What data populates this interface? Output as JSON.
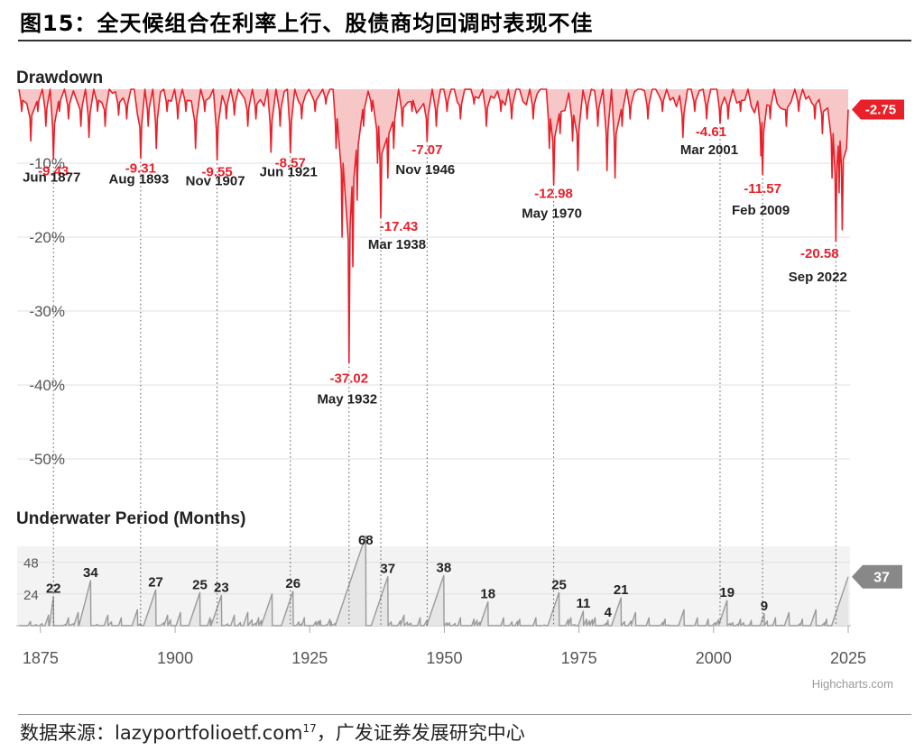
{
  "figure": {
    "title": "图15：全天候组合在利率上行、股债商均回调时表现不佳",
    "source_prefix": "数据来源：",
    "source_site": "lazyportfolioetf.com",
    "source_sup": "17",
    "source_suffix": "，广发证券发展研究中心",
    "credit": "Highcharts.com"
  },
  "colors": {
    "drawdown": "#e8202a",
    "drawdown_fill": "#f7c7c7",
    "underwater": "#9a9a9a",
    "underwater_fill": "#e6e6e6",
    "badge_red": "#e8202a",
    "badge_gray": "#888888"
  },
  "chart_data": [
    {
      "type": "area",
      "title": "Drawdown",
      "y_unit": "%",
      "ylim": [
        -55,
        0
      ],
      "yticks": [
        -10,
        -20,
        -30,
        -40,
        -50
      ],
      "ytick_labels": [
        "-10%",
        "-20%",
        "-30%",
        "-40%",
        "-50%"
      ],
      "xlim": [
        1871,
        2025
      ],
      "xticks": [
        1875,
        1900,
        1925,
        1950,
        1975,
        2000,
        2025
      ],
      "grid": true,
      "current_value": "-2.75",
      "annotations": [
        {
          "date": "Jun 1877",
          "x": 1877.4,
          "value": "-9.43"
        },
        {
          "date": "Aug 1893",
          "x": 1893.6,
          "value": "-9.31"
        },
        {
          "date": "Nov 1907",
          "x": 1907.8,
          "value": "-9.55"
        },
        {
          "date": "Jun 1921",
          "x": 1921.4,
          "value": "-8.57"
        },
        {
          "date": "May 1932",
          "x": 1932.3,
          "value": "-37.02"
        },
        {
          "date": "Mar 1938",
          "x": 1938.2,
          "value": "-17.43"
        },
        {
          "date": "Nov 1946",
          "x": 1946.8,
          "value": "-7.07"
        },
        {
          "date": "May 1970",
          "x": 1970.3,
          "value": "-12.98"
        },
        {
          "date": "Mar 2001",
          "x": 2001.2,
          "value": "-4.61"
        },
        {
          "date": "Feb 2009",
          "x": 2009.1,
          "value": "-11.57"
        },
        {
          "date": "Sep 2022",
          "x": 2022.7,
          "value": "-20.58"
        }
      ],
      "troughs": [
        [
          1871.5,
          -3
        ],
        [
          1873.2,
          -7
        ],
        [
          1874.5,
          -3
        ],
        [
          1876.0,
          -5
        ],
        [
          1877.4,
          -9.43
        ],
        [
          1878.5,
          -3
        ],
        [
          1880.2,
          -4
        ],
        [
          1882.5,
          -5
        ],
        [
          1884.0,
          -6.5
        ],
        [
          1885.6,
          -3
        ],
        [
          1887.0,
          -5
        ],
        [
          1889.5,
          -3.5
        ],
        [
          1891.0,
          -4
        ],
        [
          1893.6,
          -9.31
        ],
        [
          1895.0,
          -5
        ],
        [
          1896.5,
          -8
        ],
        [
          1898.5,
          -3
        ],
        [
          1900.5,
          -4
        ],
        [
          1902.0,
          -3
        ],
        [
          1903.8,
          -8
        ],
        [
          1905.5,
          -3
        ],
        [
          1907.8,
          -9.55
        ],
        [
          1909.5,
          -4
        ],
        [
          1911.0,
          -3.5
        ],
        [
          1913.5,
          -5
        ],
        [
          1915.0,
          -4
        ],
        [
          1917.8,
          -8.5
        ],
        [
          1919.5,
          -5
        ],
        [
          1921.4,
          -8.57
        ],
        [
          1923.5,
          -4
        ],
        [
          1926.0,
          -3
        ],
        [
          1928.0,
          -2
        ],
        [
          1929.9,
          -8
        ],
        [
          1931.0,
          -20
        ],
        [
          1932.3,
          -37.02
        ],
        [
          1933.0,
          -24
        ],
        [
          1933.8,
          -15
        ],
        [
          1935.0,
          -5
        ],
        [
          1936.5,
          -3
        ],
        [
          1937.6,
          -10
        ],
        [
          1938.2,
          -17.43
        ],
        [
          1939.5,
          -12
        ],
        [
          1940.6,
          -8
        ],
        [
          1942.2,
          -5
        ],
        [
          1944.0,
          -3
        ],
        [
          1946.8,
          -7.07
        ],
        [
          1948.5,
          -5
        ],
        [
          1950.5,
          -3
        ],
        [
          1953.0,
          -4
        ],
        [
          1955.5,
          -2
        ],
        [
          1957.8,
          -5
        ],
        [
          1960.5,
          -3
        ],
        [
          1962.5,
          -4
        ],
        [
          1966.5,
          -4
        ],
        [
          1969.5,
          -8
        ],
        [
          1970.3,
          -12.98
        ],
        [
          1971.5,
          -6
        ],
        [
          1973.8,
          -7
        ],
        [
          1974.8,
          -11
        ],
        [
          1976.5,
          -4
        ],
        [
          1978.5,
          -5
        ],
        [
          1980.2,
          -11
        ],
        [
          1981.7,
          -12
        ],
        [
          1983.0,
          -5
        ],
        [
          1984.5,
          -4
        ],
        [
          1987.8,
          -4
        ],
        [
          1990.5,
          -3
        ],
        [
          1994.3,
          -6.5
        ],
        [
          1996.5,
          -3
        ],
        [
          1998.7,
          -4
        ],
        [
          2001.2,
          -4.61
        ],
        [
          2002.7,
          -4
        ],
        [
          2005.0,
          -3
        ],
        [
          2008.8,
          -9
        ],
        [
          2009.1,
          -11.57
        ],
        [
          2010.5,
          -4
        ],
        [
          2013.5,
          -5
        ],
        [
          2015.8,
          -3
        ],
        [
          2018.8,
          -4
        ],
        [
          2020.2,
          -6
        ],
        [
          2022.0,
          -12
        ],
        [
          2022.7,
          -20.58
        ],
        [
          2023.3,
          -14
        ],
        [
          2023.9,
          -19
        ]
      ],
      "end_value": -2.75
    },
    {
      "type": "area",
      "title": "Underwater Period (Months)",
      "ylim": [
        0,
        60
      ],
      "yticks": [
        24,
        48
      ],
      "xlim": [
        1871,
        2025
      ],
      "xticks": [
        1875,
        1900,
        1925,
        1950,
        1975,
        2000,
        2025
      ],
      "current_value": "37",
      "annotations": [
        {
          "x": 1877.4,
          "value": "22"
        },
        {
          "x": 1884.3,
          "value": "34"
        },
        {
          "x": 1896.4,
          "value": "27"
        },
        {
          "x": 1904.6,
          "value": "25"
        },
        {
          "x": 1908.6,
          "value": "23"
        },
        {
          "x": 1921.9,
          "value": "26"
        },
        {
          "x": 1935.4,
          "value": "68"
        },
        {
          "x": 1939.5,
          "value": "37"
        },
        {
          "x": 1949.9,
          "value": "38"
        },
        {
          "x": 1958.1,
          "value": "18"
        },
        {
          "x": 1971.3,
          "value": "25"
        },
        {
          "x": 1975.8,
          "value": "11"
        },
        {
          "x": 1980.4,
          "value": "4"
        },
        {
          "x": 1982.8,
          "value": "21"
        },
        {
          "x": 2002.5,
          "value": "19"
        },
        {
          "x": 2009.4,
          "value": "9"
        }
      ],
      "peaks": [
        [
          1876.5,
          8
        ],
        [
          1877.4,
          22
        ],
        [
          1880.2,
          6
        ],
        [
          1882.0,
          10
        ],
        [
          1884.3,
          34
        ],
        [
          1887.5,
          8
        ],
        [
          1890.0,
          6
        ],
        [
          1893.0,
          12
        ],
        [
          1896.4,
          27
        ],
        [
          1898.6,
          8
        ],
        [
          1901.0,
          10
        ],
        [
          1904.6,
          25
        ],
        [
          1906.5,
          6
        ],
        [
          1908.6,
          23
        ],
        [
          1911.0,
          8
        ],
        [
          1913.5,
          10
        ],
        [
          1915.5,
          6
        ],
        [
          1918.0,
          24
        ],
        [
          1921.9,
          26
        ],
        [
          1924.0,
          6
        ],
        [
          1927.0,
          4
        ],
        [
          1929.0,
          3
        ],
        [
          1935.4,
          68
        ],
        [
          1939.5,
          37
        ],
        [
          1942.5,
          8
        ],
        [
          1945.5,
          6
        ],
        [
          1949.9,
          38
        ],
        [
          1953.0,
          6
        ],
        [
          1955.5,
          5
        ],
        [
          1958.1,
          18
        ],
        [
          1961.0,
          6
        ],
        [
          1964.0,
          5
        ],
        [
          1967.0,
          6
        ],
        [
          1971.3,
          25
        ],
        [
          1973.5,
          6
        ],
        [
          1975.8,
          11
        ],
        [
          1978.0,
          6
        ],
        [
          1980.4,
          4
        ],
        [
          1982.8,
          21
        ],
        [
          1985.5,
          10
        ],
        [
          1988.0,
          6
        ],
        [
          1991.0,
          5
        ],
        [
          1994.5,
          12
        ],
        [
          1997.0,
          6
        ],
        [
          1999.0,
          5
        ],
        [
          2002.5,
          19
        ],
        [
          2005.0,
          5
        ],
        [
          2007.0,
          4
        ],
        [
          2009.4,
          9
        ],
        [
          2011.5,
          6
        ],
        [
          2014.0,
          10
        ],
        [
          2016.5,
          5
        ],
        [
          2019.0,
          12
        ],
        [
          2021.0,
          5
        ]
      ],
      "end_value": 37
    }
  ]
}
